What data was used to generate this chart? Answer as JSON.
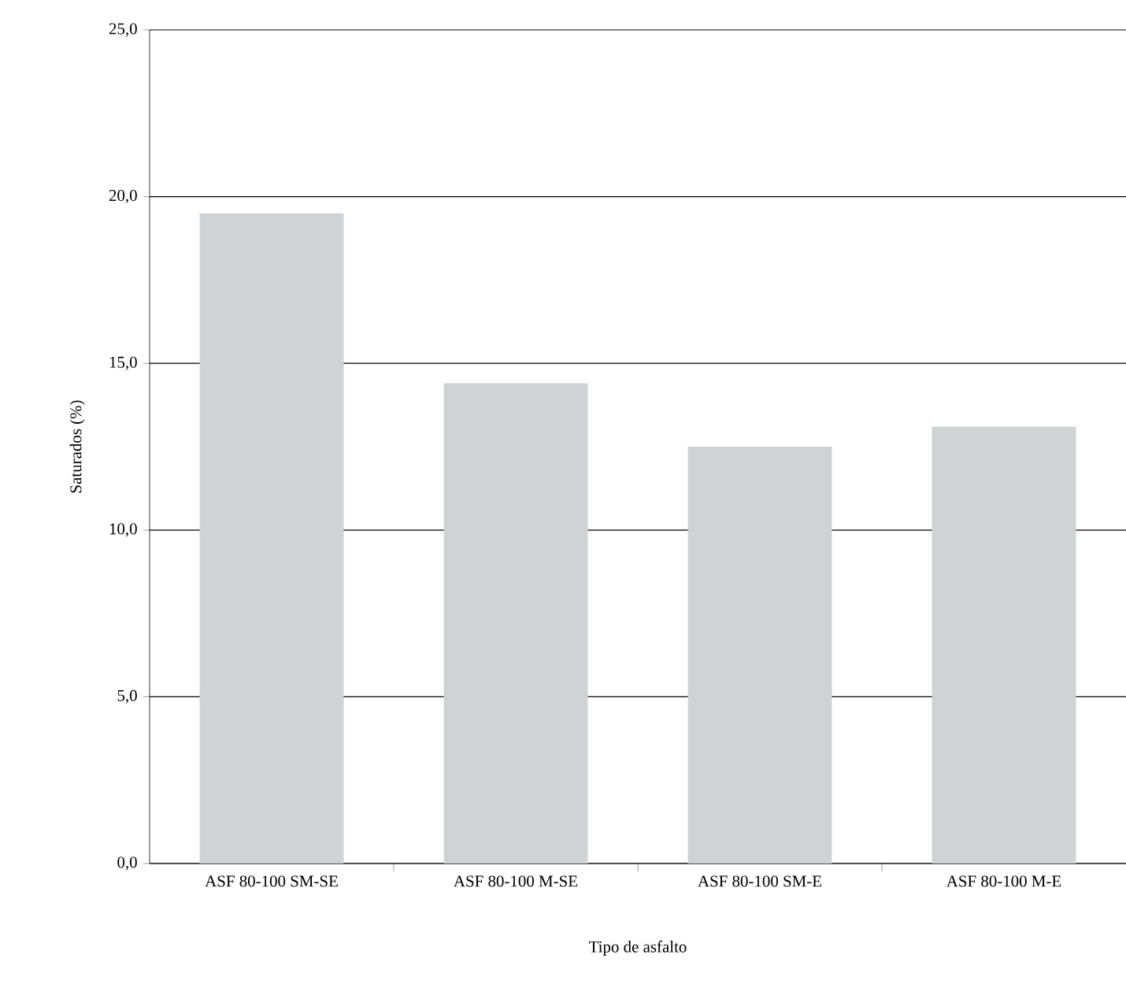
{
  "chart_data": {
    "type": "bar",
    "xlabel": "Tipo de asfalto",
    "ylabel": "Saturados (%)",
    "categories": [
      "ASF 80-100 SM-SE",
      "ASF 80-100 M-SE",
      "ASF 80-100 SM-E",
      "ASF 80-100 M-E"
    ],
    "values": [
      19.5,
      14.4,
      12.5,
      13.1
    ],
    "color": "#d1d2d4",
    "ylim": [
      0,
      25
    ],
    "yticks": [
      {
        "value": 0,
        "label": "0,0"
      },
      {
        "value": 5,
        "label": "5,0"
      },
      {
        "value": 10,
        "label": "10,0"
      },
      {
        "value": 15,
        "label": "15,0"
      },
      {
        "value": 20,
        "label": "20,0"
      },
      {
        "value": 25,
        "label": "25,0"
      }
    ],
    "grid": "y"
  }
}
